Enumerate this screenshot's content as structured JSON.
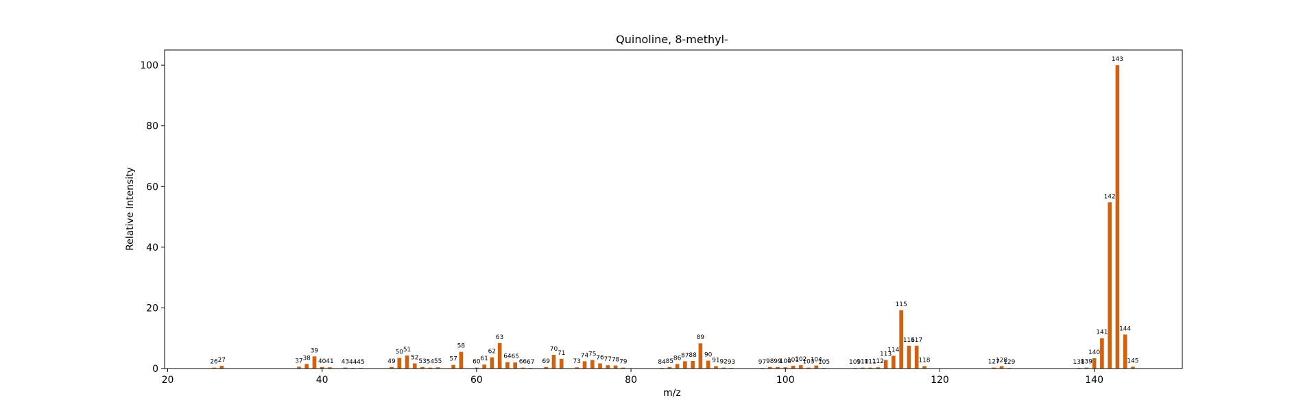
{
  "chart_data": {
    "type": "bar",
    "title": "Quinoline, 8-methyl-",
    "xlabel": "m/z",
    "ylabel": "Relative Intensity",
    "xlim": [
      19.6,
      151.4
    ],
    "ylim": [
      0,
      105
    ],
    "xticks": [
      20,
      40,
      60,
      80,
      100,
      120,
      140
    ],
    "yticks": [
      0,
      20,
      40,
      60,
      80,
      100
    ],
    "grid": false,
    "bar_color": "#d2610f",
    "peaks": [
      {
        "mz": 26,
        "intensity": 0.3
      },
      {
        "mz": 27,
        "intensity": 0.9
      },
      {
        "mz": 37,
        "intensity": 0.6
      },
      {
        "mz": 38,
        "intensity": 1.5
      },
      {
        "mz": 39,
        "intensity": 4.0
      },
      {
        "mz": 40,
        "intensity": 0.5
      },
      {
        "mz": 41,
        "intensity": 0.4
      },
      {
        "mz": 43,
        "intensity": 0.3
      },
      {
        "mz": 44,
        "intensity": 0.2
      },
      {
        "mz": 45,
        "intensity": 0.2
      },
      {
        "mz": 49,
        "intensity": 0.5
      },
      {
        "mz": 50,
        "intensity": 3.5
      },
      {
        "mz": 51,
        "intensity": 4.3
      },
      {
        "mz": 52,
        "intensity": 1.7
      },
      {
        "mz": 53,
        "intensity": 0.5
      },
      {
        "mz": 54,
        "intensity": 0.3
      },
      {
        "mz": 55,
        "intensity": 0.4
      },
      {
        "mz": 57,
        "intensity": 1.2
      },
      {
        "mz": 58,
        "intensity": 5.5
      },
      {
        "mz": 60,
        "intensity": 0.3
      },
      {
        "mz": 61,
        "intensity": 1.3
      },
      {
        "mz": 62,
        "intensity": 3.7
      },
      {
        "mz": 63,
        "intensity": 8.4
      },
      {
        "mz": 64,
        "intensity": 2.1
      },
      {
        "mz": 65,
        "intensity": 2.0
      },
      {
        "mz": 66,
        "intensity": 0.3
      },
      {
        "mz": 67,
        "intensity": 0.2
      },
      {
        "mz": 69,
        "intensity": 0.5
      },
      {
        "mz": 70,
        "intensity": 4.5
      },
      {
        "mz": 71,
        "intensity": 3.2
      },
      {
        "mz": 73,
        "intensity": 0.4
      },
      {
        "mz": 74,
        "intensity": 2.4
      },
      {
        "mz": 75,
        "intensity": 2.8
      },
      {
        "mz": 76,
        "intensity": 1.7
      },
      {
        "mz": 77,
        "intensity": 1.1
      },
      {
        "mz": 78,
        "intensity": 1.0
      },
      {
        "mz": 79,
        "intensity": 0.3
      },
      {
        "mz": 84,
        "intensity": 0.2
      },
      {
        "mz": 85,
        "intensity": 0.5
      },
      {
        "mz": 86,
        "intensity": 1.5
      },
      {
        "mz": 87,
        "intensity": 2.4
      },
      {
        "mz": 88,
        "intensity": 2.5
      },
      {
        "mz": 89,
        "intensity": 8.3
      },
      {
        "mz": 90,
        "intensity": 2.6
      },
      {
        "mz": 91,
        "intensity": 0.8
      },
      {
        "mz": 92,
        "intensity": 0.3
      },
      {
        "mz": 93,
        "intensity": 0.2
      },
      {
        "mz": 97,
        "intensity": 0.2
      },
      {
        "mz": 98,
        "intensity": 0.5
      },
      {
        "mz": 99,
        "intensity": 0.5
      },
      {
        "mz": 100,
        "intensity": 0.4
      },
      {
        "mz": 101,
        "intensity": 0.9
      },
      {
        "mz": 102,
        "intensity": 1.1
      },
      {
        "mz": 103,
        "intensity": 0.3
      },
      {
        "mz": 104,
        "intensity": 1.0
      },
      {
        "mz": 105,
        "intensity": 0.2
      },
      {
        "mz": 109,
        "intensity": 0.2
      },
      {
        "mz": 110,
        "intensity": 0.3
      },
      {
        "mz": 111,
        "intensity": 0.3
      },
      {
        "mz": 112,
        "intensity": 0.4
      },
      {
        "mz": 113,
        "intensity": 2.8
      },
      {
        "mz": 114,
        "intensity": 4.2
      },
      {
        "mz": 115,
        "intensity": 19.2
      },
      {
        "mz": 116,
        "intensity": 7.5
      },
      {
        "mz": 117,
        "intensity": 7.5
      },
      {
        "mz": 118,
        "intensity": 0.8
      },
      {
        "mz": 127,
        "intensity": 0.3
      },
      {
        "mz": 128,
        "intensity": 0.8
      },
      {
        "mz": 129,
        "intensity": 0.2
      },
      {
        "mz": 138,
        "intensity": 0.2
      },
      {
        "mz": 139,
        "intensity": 0.3
      },
      {
        "mz": 140,
        "intensity": 3.4
      },
      {
        "mz": 141,
        "intensity": 10.0
      },
      {
        "mz": 142,
        "intensity": 54.8
      },
      {
        "mz": 143,
        "intensity": 100.0
      },
      {
        "mz": 144,
        "intensity": 11.2
      },
      {
        "mz": 145,
        "intensity": 0.6
      }
    ]
  }
}
